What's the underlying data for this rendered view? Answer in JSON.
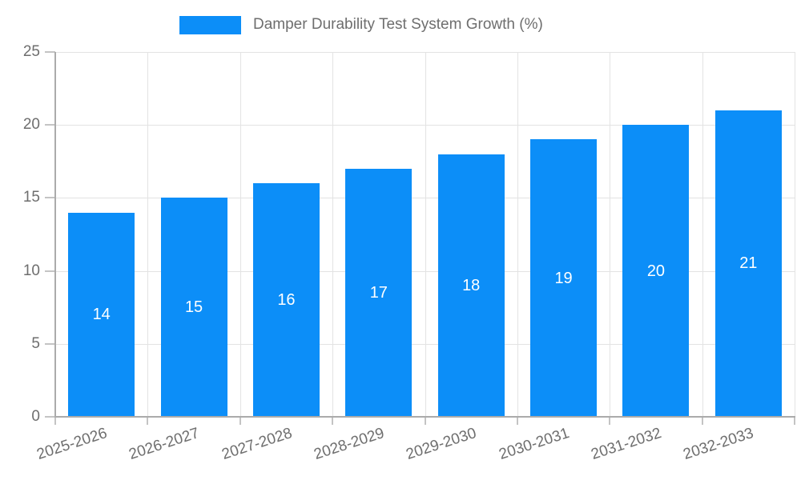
{
  "chart_data": {
    "type": "bar",
    "title": "",
    "legend_label": "Damper Durability Test System Growth (%)",
    "legend_position": "top",
    "categories": [
      "2025-2026",
      "2026-2027",
      "2027-2028",
      "2028-2029",
      "2029-2030",
      "2030-2031",
      "2031-2032",
      "2032-2033"
    ],
    "values": [
      14,
      15,
      16,
      17,
      18,
      19,
      20,
      21
    ],
    "bar_value_labels": [
      "14",
      "15",
      "16",
      "17",
      "18",
      "19",
      "20",
      "21"
    ],
    "xlabel": "",
    "ylabel": "",
    "ylim": [
      0,
      25
    ],
    "yticks": [
      0,
      5,
      10,
      15,
      20,
      25
    ],
    "grid": true,
    "bar_labels_inside": true,
    "colors": {
      "bar": "#0c8ef8",
      "grid": "#e3e3e3",
      "axis": "#ababab",
      "tick": "#c4c4c4",
      "text": "#6e6e6e",
      "bar_label": "#ffffff",
      "background": "#ffffff"
    }
  }
}
